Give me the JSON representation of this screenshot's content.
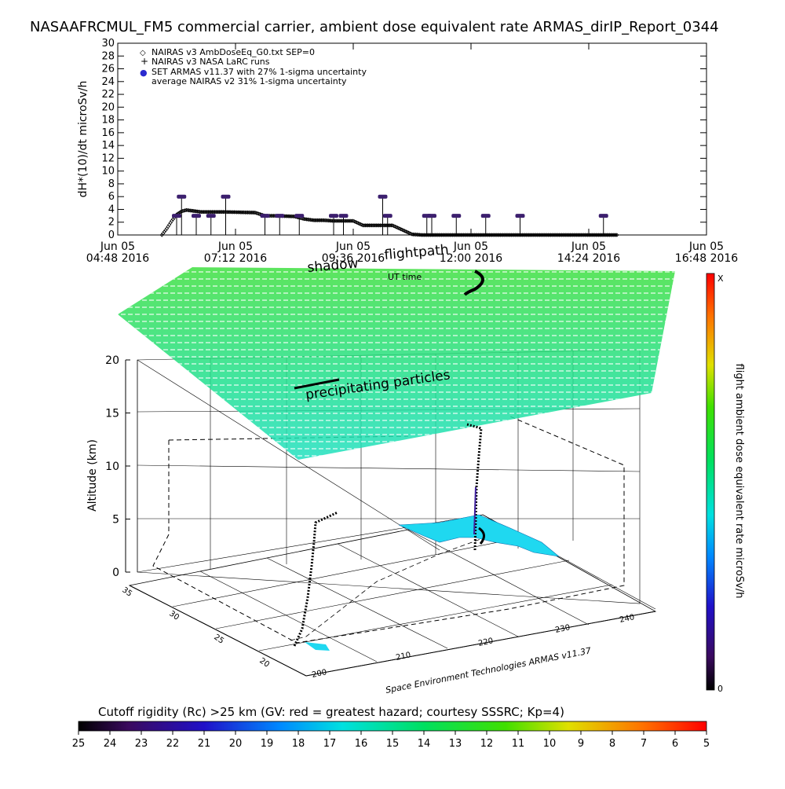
{
  "title": "NASAAFRCMUL_FM5 commercial carrier, ambient dose equivalent rate ARMAS_dirIP_Report_0344",
  "chart_data": [
    {
      "type": "scatter",
      "ylabel": "dH*(10)/dt microSv/h",
      "ylim": [
        0,
        30
      ],
      "yticks": [
        0,
        2,
        4,
        6,
        8,
        10,
        12,
        14,
        16,
        18,
        20,
        22,
        24,
        26,
        28,
        30
      ],
      "xlim": [
        "Jun 05 04:48 2016",
        "Jun 05 16:48 2016"
      ],
      "xticks": [
        {
          "label1": "Jun 05",
          "label2": "04:48 2016",
          "hour": 4.8
        },
        {
          "label1": "Jun 05",
          "label2": "07:12 2016",
          "hour": 7.2
        },
        {
          "label1": "Jun 05",
          "label2": "09:36 2016",
          "hour": 9.6
        },
        {
          "label1": "Jun 05",
          "label2": "12:00 2016",
          "hour": 12.0
        },
        {
          "label1": "Jun 05",
          "label2": "14:24 2016",
          "hour": 14.4
        },
        {
          "label1": "Jun 05",
          "label2": "16:48 2016",
          "hour": 16.8
        }
      ],
      "xlabel": "UT time",
      "legend": [
        {
          "symbol": "◇",
          "text": "NAIRAS v3 AmbDoseEq_G0.txt SEP=0"
        },
        {
          "symbol": "+",
          "text": "NAIRAS v3 NASA LaRC runs"
        },
        {
          "symbol": "●",
          "text": "SET ARMAS v11.37 with 27% 1-sigma uncertainty"
        },
        {
          "symbol": "",
          "text": "average NAIRAS v2 31% 1-sigma uncertainty"
        }
      ],
      "legend_position": "top-left",
      "series": [
        {
          "name": "NAIRAS v3 AmbDoseEq_G0.txt SEP=0",
          "x": [
            5.7,
            5.8,
            5.9,
            6.0,
            6.1,
            6.2,
            6.3,
            6.5,
            7.0,
            7.6,
            7.8,
            8.0,
            8.4,
            8.6,
            8.8,
            9.0,
            9.2,
            9.6,
            9.8,
            10.0,
            10.4,
            10.6,
            10.8,
            11.0,
            11.6,
            12.0,
            13.0,
            14.0,
            15.0
          ],
          "y": [
            0.0,
            1.0,
            2.2,
            3.2,
            3.7,
            3.9,
            3.8,
            3.6,
            3.6,
            3.5,
            3.0,
            3.0,
            2.9,
            2.5,
            2.3,
            2.3,
            2.2,
            2.2,
            1.5,
            1.5,
            1.5,
            0.8,
            0.1,
            0.0,
            0.0,
            0.0,
            0.0,
            0.0,
            0.0
          ]
        },
        {
          "name": "SET ARMAS v11.37 with 27% 1-sigma uncertainty",
          "color": "#3c1f6e",
          "x": [
            6.0,
            6.1,
            6.4,
            6.7,
            7.0,
            7.8,
            8.1,
            8.5,
            9.2,
            9.4,
            10.2,
            10.3,
            11.1,
            11.2,
            11.7,
            12.3,
            13.0,
            14.7
          ],
          "y": [
            3.0,
            6.0,
            3.0,
            3.0,
            6.0,
            3.0,
            3.0,
            3.0,
            3.0,
            3.0,
            6.0,
            3.0,
            3.0,
            3.0,
            3.0,
            3.0,
            3.0,
            3.0
          ]
        }
      ],
      "grid": false
    },
    {
      "type": "3d-scatter",
      "zlabel": "Altitude (km)",
      "zticks": [
        0,
        5,
        10,
        15,
        20
      ],
      "longitude_ticks": [
        200,
        210,
        220,
        230,
        240
      ],
      "latitude_ticks": [
        20,
        25,
        30,
        35
      ],
      "credit": "Space Environment Technologies ARMAS v11.37",
      "annotations": [
        "flightpath",
        "shadow",
        "precipitating particles"
      ],
      "colorbar": {
        "label": "flight ambient dose equivalent rate microSv/h",
        "top_label": "X",
        "bottom_label": "0"
      },
      "grid": true
    }
  ],
  "footer": {
    "caption": "Cutoff rigidity (Rc) >25 km (GV: red = greatest hazard; courtesy SSSRC; Kp=4)",
    "scale_labels": [
      "25",
      "24",
      "23",
      "22",
      "21",
      "20",
      "19",
      "18",
      "17",
      "16",
      "15",
      "14",
      "13",
      "12",
      "11",
      "10",
      "9",
      "8",
      "7",
      "6",
      "5"
    ]
  }
}
